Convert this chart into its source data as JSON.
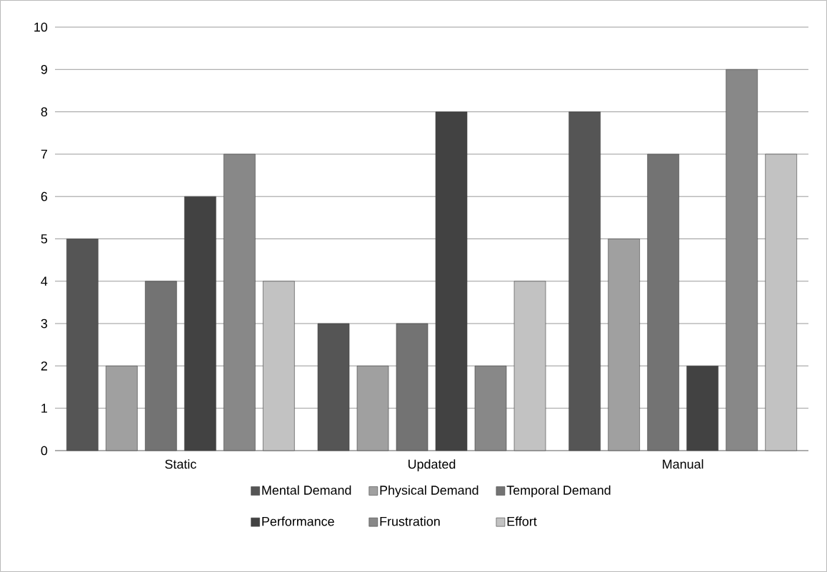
{
  "chart_data": {
    "type": "bar",
    "categories": [
      "Static",
      "Updated",
      "Manual"
    ],
    "series": [
      {
        "name": "Mental Demand",
        "color": "#555555",
        "values": [
          5,
          3,
          8
        ]
      },
      {
        "name": "Physical Demand",
        "color": "#a0a0a0",
        "values": [
          2,
          2,
          5
        ]
      },
      {
        "name": "Temporal Demand",
        "color": "#737373",
        "values": [
          4,
          3,
          7
        ]
      },
      {
        "name": "Performance",
        "color": "#424242",
        "values": [
          6,
          8,
          2
        ]
      },
      {
        "name": "Frustration",
        "color": "#888888",
        "values": [
          7,
          2,
          9
        ]
      },
      {
        "name": "Effort",
        "color": "#c2c2c2",
        "values": [
          4,
          4,
          7
        ]
      }
    ],
    "ylim": [
      0,
      10
    ],
    "yticks": [
      0,
      1,
      2,
      3,
      4,
      5,
      6,
      7,
      8,
      9,
      10
    ],
    "grid": "y",
    "legend": "bottom"
  }
}
